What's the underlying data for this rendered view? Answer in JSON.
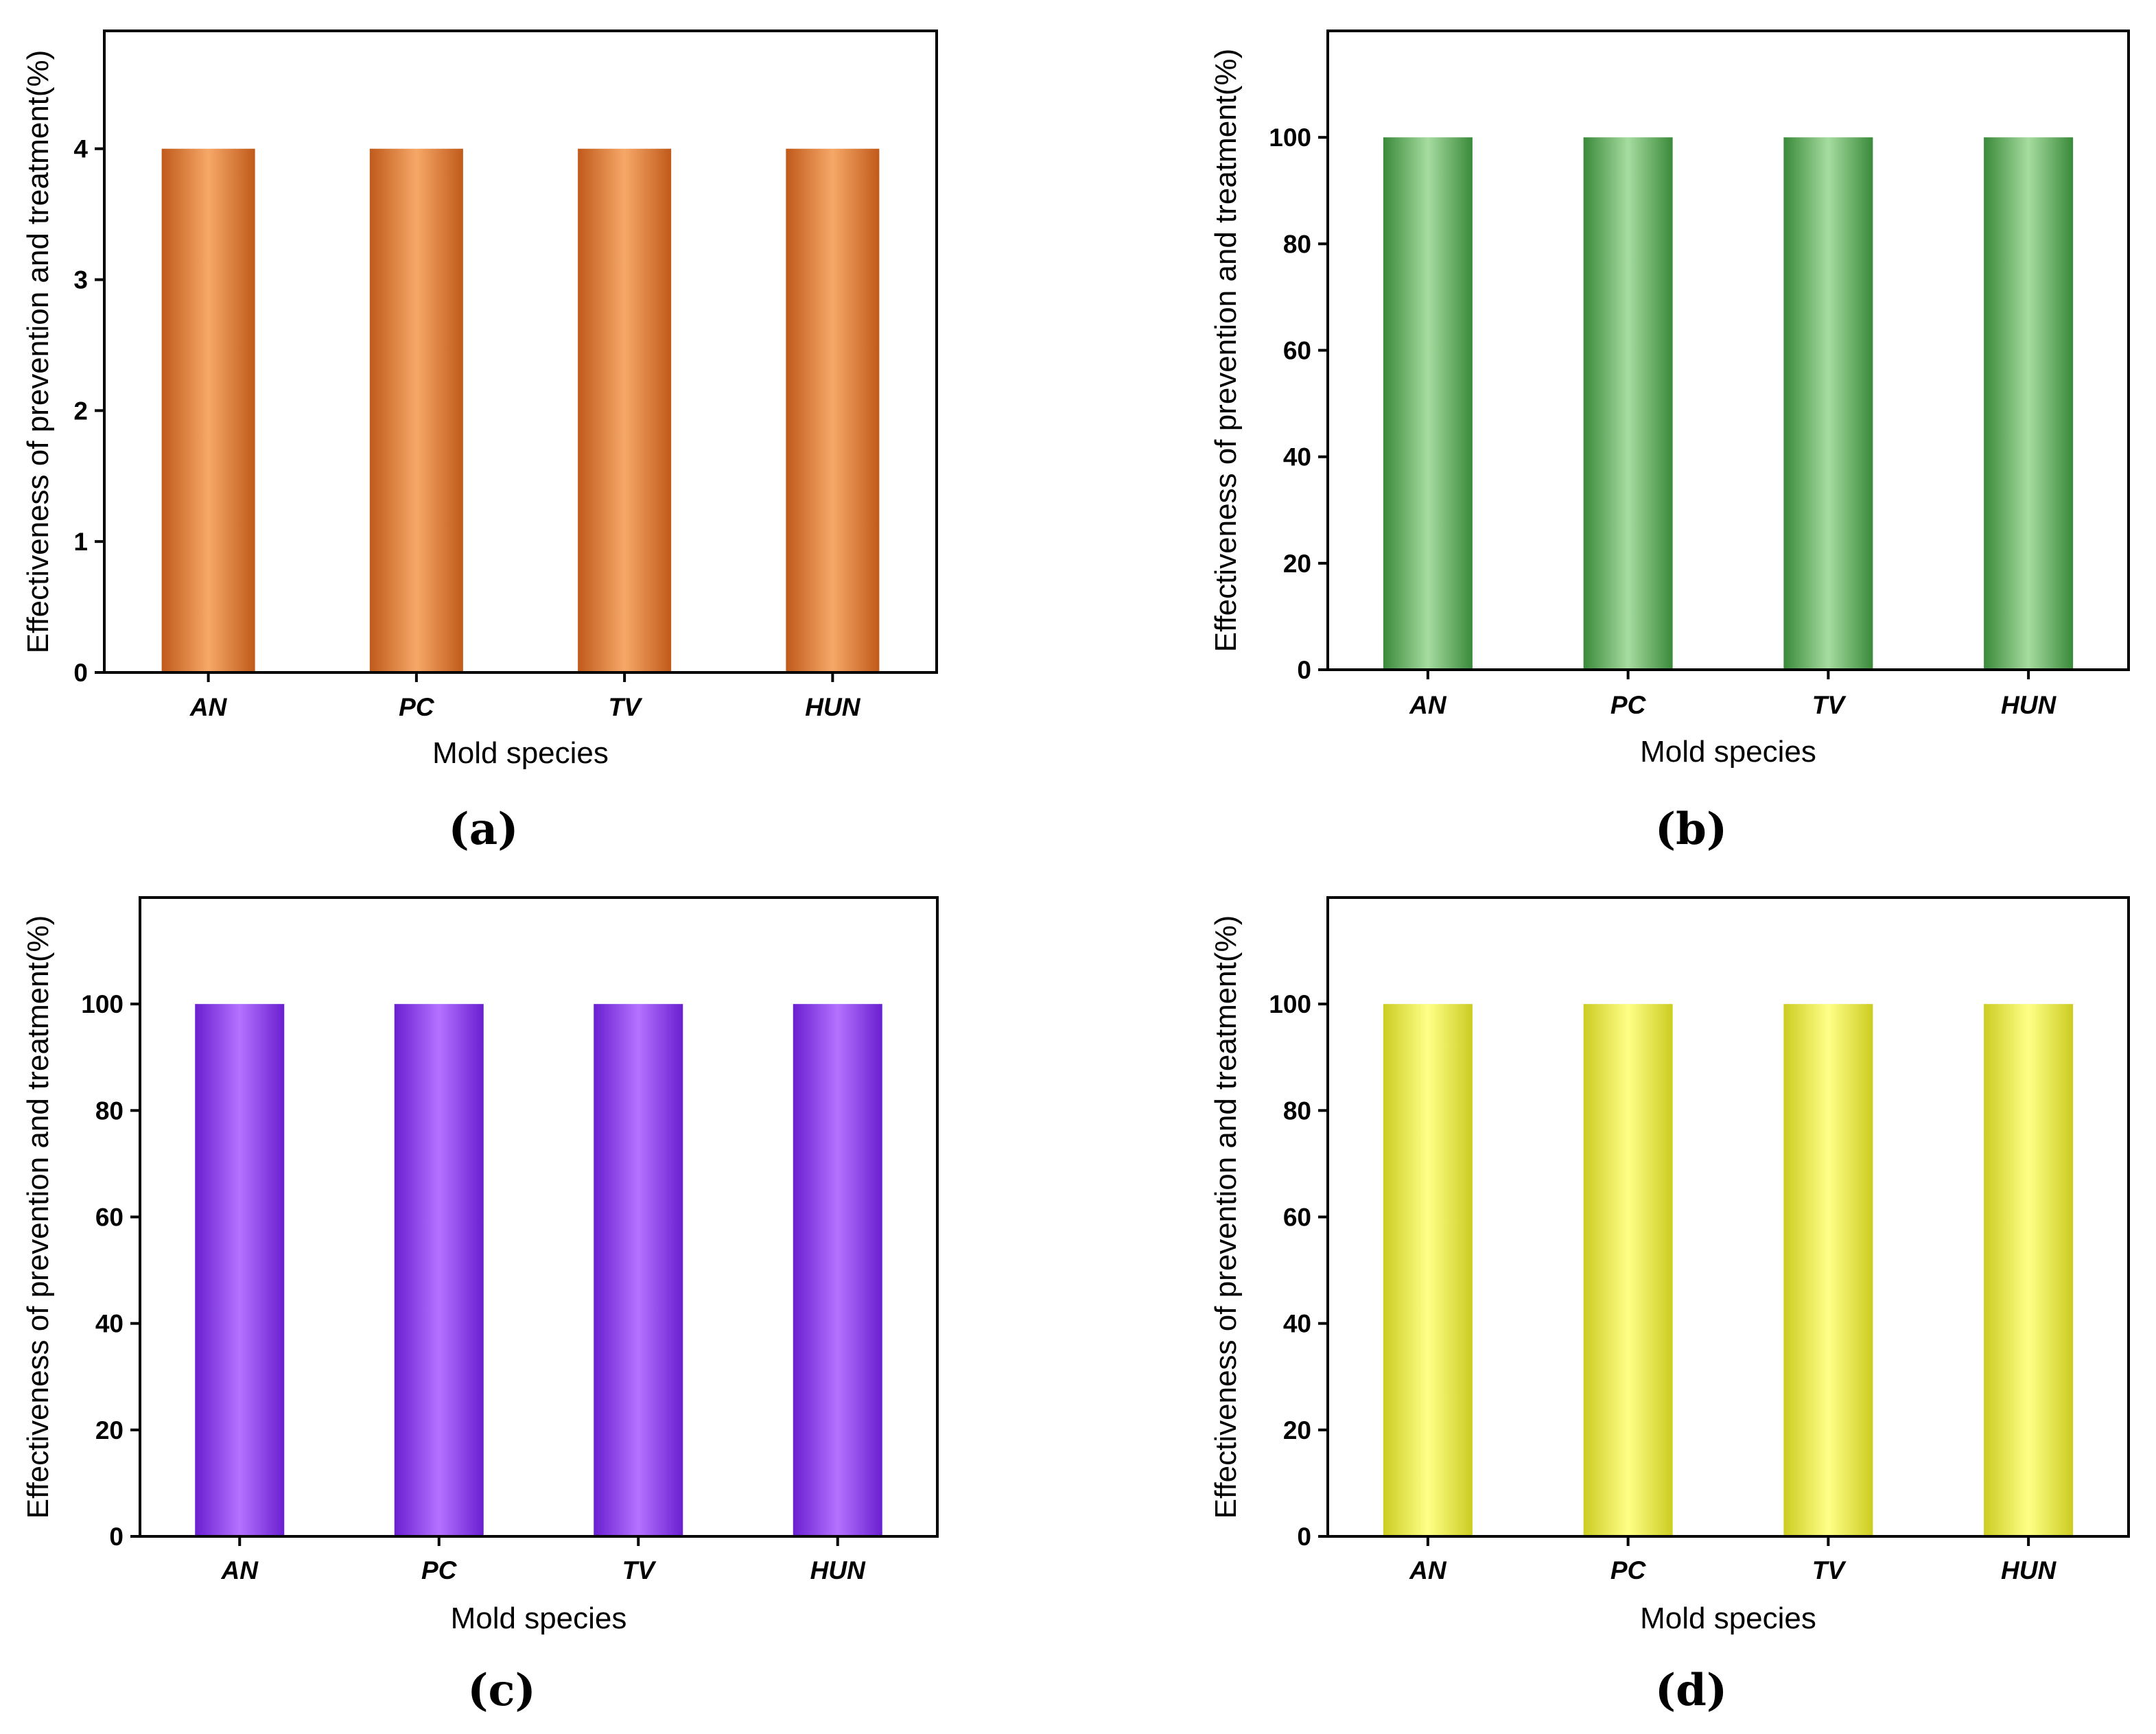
{
  "chart_data": [
    {
      "type": "bar",
      "panel_label": "(a)",
      "categories": [
        "AN",
        "PC",
        "TV",
        "HUN"
      ],
      "values": [
        4,
        4,
        4,
        4
      ],
      "xlabel": "Mold species",
      "ylabel": "Effectiveness of prevention and treatment(%)",
      "ylim": [
        0,
        4.9
      ],
      "yticks": [
        0,
        1,
        2,
        3,
        4
      ],
      "grid": false,
      "colors": {
        "edge": "#c05a1a",
        "center": "#f6a868"
      }
    },
    {
      "type": "bar",
      "panel_label": "(b)",
      "categories": [
        "AN",
        "PC",
        "TV",
        "HUN"
      ],
      "values": [
        100,
        100,
        100,
        100
      ],
      "xlabel": "Mold species",
      "ylabel": "Effectiveness of prevention and treatment(%)",
      "ylim": [
        0,
        120
      ],
      "yticks": [
        0,
        20,
        40,
        60,
        80,
        100
      ],
      "grid": false,
      "colors": {
        "edge": "#3a8a3a",
        "center": "#a6dca0"
      }
    },
    {
      "type": "bar",
      "panel_label": "(c)",
      "categories": [
        "AN",
        "PC",
        "TV",
        "HUN"
      ],
      "values": [
        100,
        100,
        100,
        100
      ],
      "xlabel": "Mold species",
      "ylabel": "Effectiveness of prevention and treatment(%)",
      "ylim": [
        0,
        120
      ],
      "yticks": [
        0,
        20,
        40,
        60,
        80,
        100
      ],
      "grid": false,
      "colors": {
        "edge": "#6a1fd0",
        "center": "#b472ff"
      }
    },
    {
      "type": "bar",
      "panel_label": "(d)",
      "categories": [
        "AN",
        "PC",
        "TV",
        "HUN"
      ],
      "values": [
        100,
        100,
        100,
        100
      ],
      "xlabel": "Mold species",
      "ylabel": "Effectiveness of prevention and treatment(%)",
      "ylim": [
        0,
        120
      ],
      "yticks": [
        0,
        20,
        40,
        60,
        80,
        100
      ],
      "grid": false,
      "colors": {
        "edge": "#cccc22",
        "center": "#ffff88"
      }
    }
  ]
}
